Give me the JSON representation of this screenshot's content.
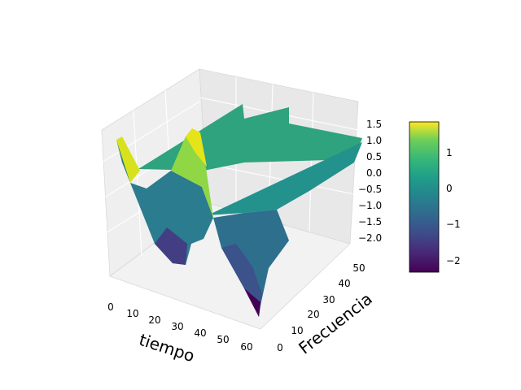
{
  "chart_data": {
    "type": "surface3d",
    "xlabel": "tiempo",
    "ylabel": "Frecuencia",
    "zlabel": "",
    "x_ticks": [
      0,
      10,
      20,
      30,
      40,
      50,
      60
    ],
    "y_ticks": [
      0,
      10,
      20,
      30,
      40,
      50
    ],
    "z_ticks": [
      "1.5",
      "1.0",
      "0.5",
      "0.0",
      "−0.5",
      "−1.0",
      "−1.5",
      "−2.0"
    ],
    "xlim": [
      0,
      63
    ],
    "ylim": [
      0,
      50
    ],
    "zlim": [
      -2.3,
      1.8
    ],
    "colormap": "viridis",
    "colorbar": {
      "ticks": [
        "1",
        "0",
        "−1",
        "−2"
      ],
      "range": [
        -2.3,
        1.8
      ]
    },
    "surface_features": [
      {
        "x": 0,
        "y": 0,
        "z": 1.7
      },
      {
        "x": 8,
        "y": 0,
        "z": -0.3
      },
      {
        "x": 18,
        "y": 0,
        "z": -2.2
      },
      {
        "x": 25,
        "y": 0,
        "z": 1.6
      },
      {
        "x": 34,
        "y": 0,
        "z": 0.9
      },
      {
        "x": 63,
        "y": 0,
        "z": -2.3
      },
      {
        "x": 63,
        "y": 50,
        "z": 0.9
      }
    ]
  }
}
